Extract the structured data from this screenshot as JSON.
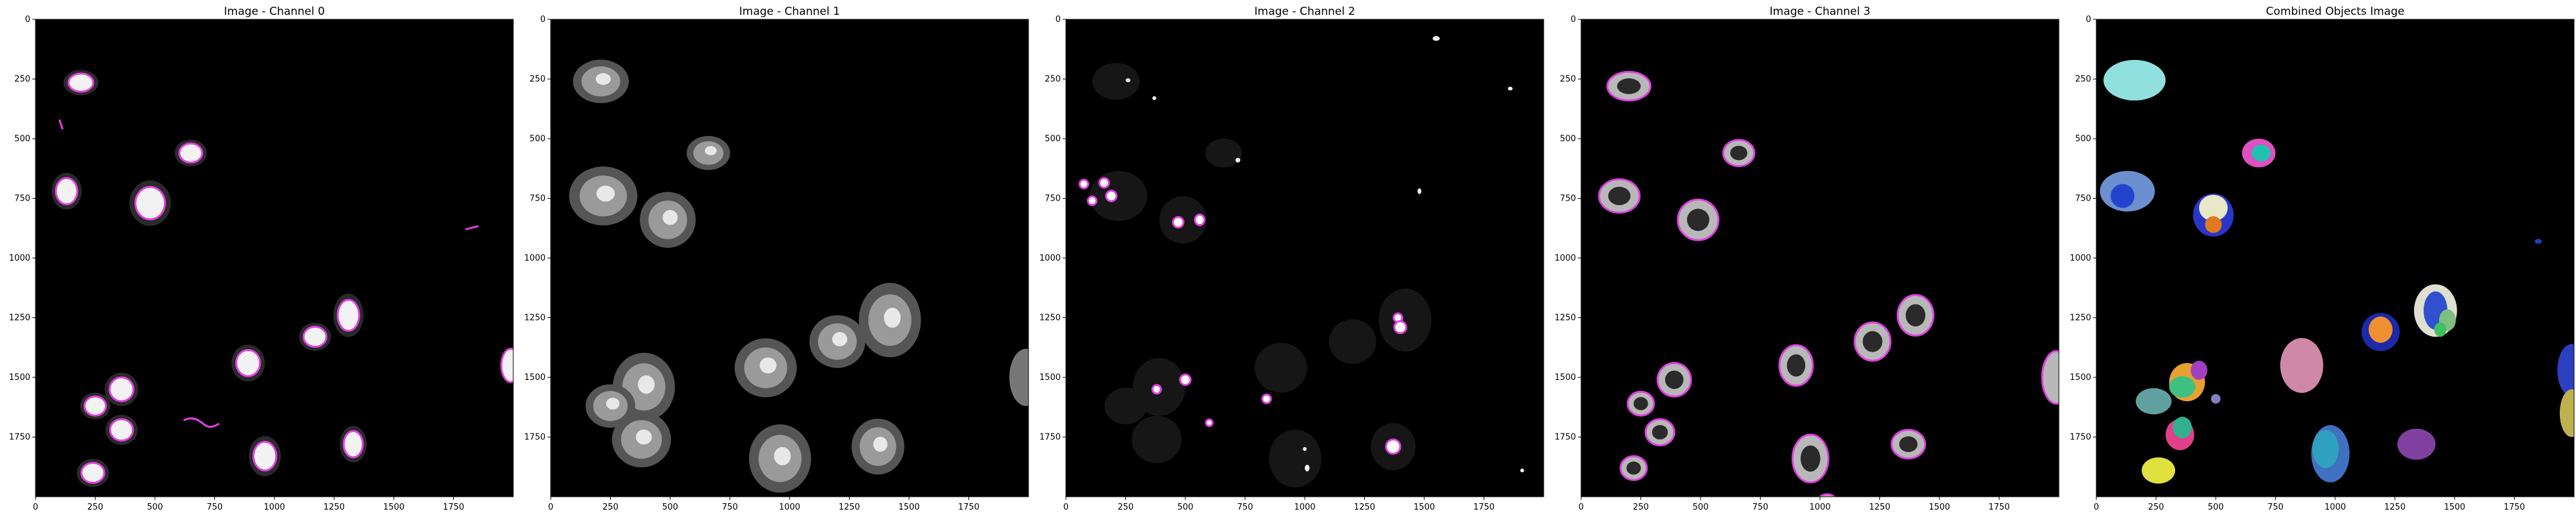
{
  "panels": [
    {
      "title": "Image - Channel 0",
      "kind": "channel",
      "overlay": "magenta"
    },
    {
      "title": "Image - Channel 1",
      "kind": "channel",
      "overlay": "none"
    },
    {
      "title": "Image - Channel 2",
      "kind": "channel",
      "overlay": "magenta"
    },
    {
      "title": "Image - Channel 3",
      "kind": "channel",
      "overlay": "magenta"
    },
    {
      "title": "Combined Objects Image",
      "kind": "labels",
      "overlay": "none"
    }
  ],
  "axes": {
    "x_ticks": [
      "0",
      "250",
      "500",
      "750",
      "1000",
      "1250",
      "1500",
      "1750"
    ],
    "y_ticks": [
      "0",
      "250",
      "500",
      "750",
      "1000",
      "1250",
      "1500",
      "1750"
    ],
    "image_size": 2000
  },
  "colors": {
    "background": "#000000",
    "outline": "#e040e0",
    "cell_fill": "#9a9a9a",
    "nucleus_fill": "#f2f2f2"
  }
}
